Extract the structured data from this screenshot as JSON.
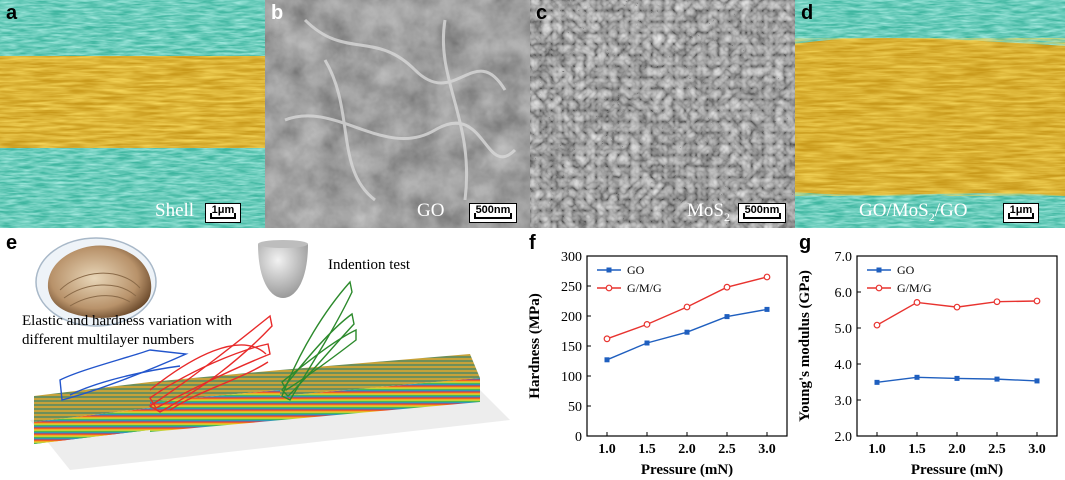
{
  "panels": {
    "a": {
      "label": "a",
      "caption": "Shell",
      "scale": "1μm"
    },
    "b": {
      "label": "b",
      "caption": "GO",
      "scale": "500nm"
    },
    "c": {
      "label": "c",
      "caption_main": "MoS",
      "caption_sub": "2",
      "scale": "500nm"
    },
    "d": {
      "label": "d",
      "caption_pre": "GO/MoS",
      "caption_sub": "2",
      "caption_post": "/GO",
      "scale": "1μm"
    },
    "e": {
      "label": "e",
      "indent_text": "Indention test",
      "elastic_text_1": "Elastic and hardness variation with",
      "elastic_text_2": "different multilayer numbers"
    },
    "f": {
      "label": "f"
    },
    "g": {
      "label": "g"
    }
  },
  "colors": {
    "shell_layer": "#3fb6a0",
    "core_layer": "#d9a21b",
    "go_series": "#1f5fbf",
    "gmg_series": "#e8332f"
  },
  "chart_data": [
    {
      "type": "line",
      "xlabel": "Pressure (mN)",
      "ylabel": "Hardness (MPa)",
      "x": [
        1.0,
        1.5,
        2.0,
        2.5,
        3.0
      ],
      "xticks": [
        "1.0",
        "1.5",
        "2.0",
        "2.5",
        "3.0"
      ],
      "yticks": [
        "0",
        "50",
        "100",
        "150",
        "200",
        "250",
        "300"
      ],
      "xlim": [
        0.75,
        3.25
      ],
      "ylim": [
        0,
        300
      ],
      "legend": "top-left",
      "series": [
        {
          "name": "GO",
          "marker": "square",
          "values": [
            127,
            155,
            173,
            199,
            211
          ]
        },
        {
          "name": "G/M/G",
          "marker": "circle",
          "values": [
            162,
            186,
            215,
            248,
            265
          ]
        }
      ]
    },
    {
      "type": "line",
      "xlabel": "Pressure (mN)",
      "ylabel": "Young's modulus (GPa)",
      "x": [
        1.0,
        1.5,
        2.0,
        2.5,
        3.0
      ],
      "xticks": [
        "1.0",
        "1.5",
        "2.0",
        "2.5",
        "3.0"
      ],
      "yticks": [
        "2.0",
        "3.0",
        "4.0",
        "5.0",
        "6.0",
        "7.0"
      ],
      "xlim": [
        0.75,
        3.25
      ],
      "ylim": [
        2.0,
        7.0
      ],
      "legend": "top-left",
      "series": [
        {
          "name": "GO",
          "marker": "square",
          "values": [
            3.49,
            3.63,
            3.6,
            3.58,
            3.53
          ]
        },
        {
          "name": "G/M/G",
          "marker": "circle",
          "values": [
            5.08,
            5.71,
            5.58,
            5.73,
            5.75
          ]
        }
      ]
    }
  ]
}
